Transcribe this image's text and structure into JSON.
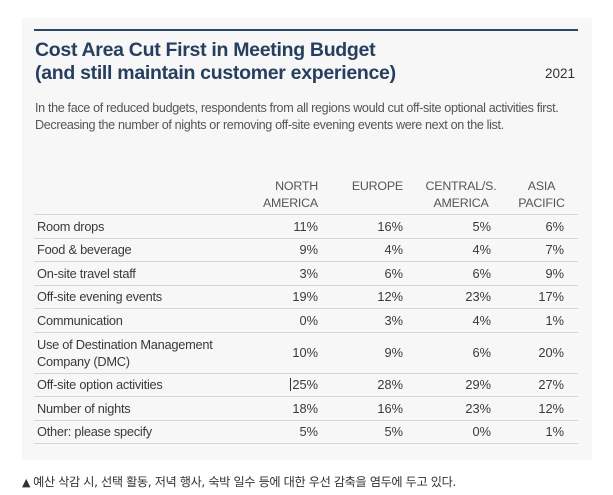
{
  "title_lines": [
    "Cost Area Cut First in Meeting Budget",
    "(and still maintain customer experience)"
  ],
  "year": "2021",
  "description": "In the face of reduced budgets, respondents from all regions would cut off-site optional activities first. Decreasing the number of nights or removing off-site evening events were next on the list.",
  "columns": [
    {
      "line1": "NORTH",
      "line2": "AMERICA"
    },
    {
      "line1": "EUROPE",
      "line2": ""
    },
    {
      "line1": "CENTRAL/S.",
      "line2": "AMERICA"
    },
    {
      "line1": "ASIA",
      "line2": "PACIFIC"
    }
  ],
  "rows": [
    {
      "label": "Room drops",
      "values": [
        "11%",
        "16%",
        "5%",
        "6%"
      ]
    },
    {
      "label": "Food & beverage",
      "values": [
        "9%",
        "4%",
        "4%",
        "7%"
      ]
    },
    {
      "label": "On-site travel staff",
      "values": [
        "3%",
        "6%",
        "6%",
        "9%"
      ]
    },
    {
      "label": "Off-site evening events",
      "values": [
        "19%",
        "12%",
        "23%",
        "17%"
      ]
    },
    {
      "label": "Communication",
      "values": [
        "0%",
        "3%",
        "4%",
        "1%"
      ]
    },
    {
      "label_line1": "Use of Destination Management",
      "label_line2": "Company (DMC)",
      "values": [
        "10%",
        "9%",
        "6%",
        "20%"
      ]
    },
    {
      "label": "Off-site option activities",
      "values": [
        "25%",
        "28%",
        "29%",
        "27%"
      ]
    },
    {
      "label": "Number of nights",
      "values": [
        "18%",
        "16%",
        "23%",
        "12%"
      ]
    },
    {
      "label": "Other: please specify",
      "values": [
        "5%",
        "5%",
        "0%",
        "1%"
      ]
    }
  ],
  "caption": "예산 삭감 시, 선택 활동, 저녁 행사, 숙박 일수 등에 대한 우선 감축을 염두에 두고 있다."
}
